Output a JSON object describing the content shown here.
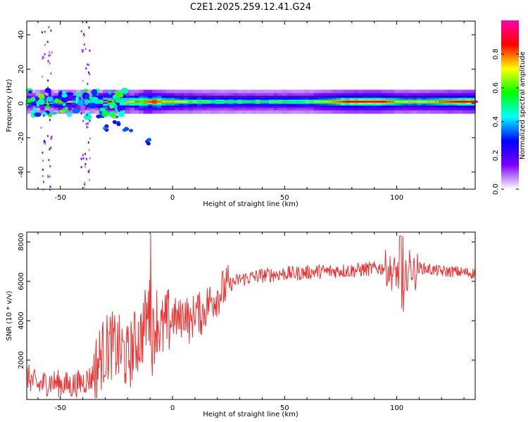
{
  "figure": {
    "title": "C2E1.2025.259.12.41.G24"
  },
  "chart_data": [
    {
      "type": "heatmap",
      "name": "spectrogram",
      "title": "C2E1.2025.259.12.41.G24",
      "xlabel": "Height of straight line (km)",
      "ylabel": "Frequency (Hz)",
      "xlim": [
        -65,
        135
      ],
      "ylim": [
        -50,
        48
      ],
      "xticks": [
        -50,
        0,
        50,
        100
      ],
      "yticks": [
        -40,
        -20,
        0,
        20,
        40
      ],
      "xtick_labels": [
        "-50",
        "0",
        "50",
        "100"
      ],
      "ytick_labels": [
        "-40",
        "-20",
        "0",
        "20",
        "40"
      ],
      "description_series": {
        "ridge_freq_hz": 1,
        "ridge_amplitude": [
          {
            "x": -60,
            "amp": 0.35
          },
          {
            "x": -50,
            "amp": 0.45
          },
          {
            "x": -40,
            "amp": 0.4
          },
          {
            "x": -30,
            "amp": 0.55
          },
          {
            "x": -20,
            "amp": 0.6
          },
          {
            "x": -10,
            "amp": 0.85
          },
          {
            "x": 0,
            "amp": 0.7
          },
          {
            "x": 10,
            "amp": 0.6
          },
          {
            "x": 20,
            "amp": 0.55
          },
          {
            "x": 40,
            "amp": 0.55
          },
          {
            "x": 60,
            "amp": 0.6
          },
          {
            "x": 70,
            "amp": 0.75
          },
          {
            "x": 80,
            "amp": 0.9
          },
          {
            "x": 90,
            "amp": 0.95
          },
          {
            "x": 100,
            "amp": 0.7
          },
          {
            "x": 110,
            "amp": 0.7
          },
          {
            "x": 120,
            "amp": 0.8
          },
          {
            "x": 130,
            "amp": 0.9
          }
        ],
        "drift_branch": [
          {
            "x": -30,
            "freq": -14
          },
          {
            "x": -25,
            "freq": -12
          },
          {
            "x": -20,
            "freq": -16
          },
          {
            "x": -10,
            "freq": -22
          }
        ]
      },
      "colorbar": {
        "label": "Normalized spectral amplitude",
        "range": [
          0,
          1
        ],
        "ticks": [
          0.0,
          0.2,
          0.4,
          0.6,
          0.8
        ],
        "tick_labels": [
          "0.0",
          "0.2",
          "0.4",
          "0.6",
          "0.8"
        ],
        "colors": [
          "#ffffff",
          "#7a00ff",
          "#0000ff",
          "#00ffff",
          "#00ff00",
          "#ffff00",
          "#ff0000",
          "#ff00aa"
        ]
      }
    },
    {
      "type": "line",
      "name": "snr",
      "xlabel": "Height of straight line (km)",
      "ylabel": "SNR (10 * v/v)",
      "xlim": [
        -65,
        135
      ],
      "ylim": [
        0,
        8500
      ],
      "xticks": [
        -50,
        0,
        50,
        100
      ],
      "yticks": [
        2000,
        4000,
        6000,
        8000
      ],
      "xtick_labels": [
        "-50",
        "0",
        "50",
        "100"
      ],
      "ytick_labels": [
        "2000",
        "4000",
        "6000",
        "8000"
      ],
      "color": "#ee3333",
      "series": [
        {
          "name": "SNR",
          "x": [
            -65,
            -60,
            -55,
            -50,
            -45,
            -40,
            -36,
            -32,
            -28,
            -25,
            -22,
            -20,
            -17,
            -14,
            -12,
            -10,
            -9,
            -7,
            -5,
            -2,
            0,
            3,
            6,
            8,
            10,
            13,
            16,
            20,
            25,
            30,
            35,
            40,
            45,
            50,
            55,
            60,
            65,
            70,
            75,
            80,
            85,
            90,
            95,
            98,
            100,
            102,
            103,
            104,
            106,
            108,
            110,
            115,
            120,
            125,
            130,
            135
          ],
          "y": [
            1200,
            700,
            900,
            800,
            700,
            900,
            1100,
            2200,
            2800,
            2600,
            2400,
            2000,
            2800,
            3200,
            4000,
            4500,
            3000,
            4200,
            3400,
            3900,
            4200,
            4000,
            4500,
            3700,
            4600,
            4300,
            4900,
            5300,
            5800,
            6100,
            6200,
            6300,
            6350,
            6400,
            6400,
            6450,
            6500,
            6500,
            6550,
            6550,
            6600,
            6650,
            6700,
            6400,
            6500,
            5800,
            4200,
            6200,
            6800,
            6400,
            6700,
            6600,
            6500,
            6500,
            6450,
            6400
          ]
        }
      ]
    }
  ]
}
